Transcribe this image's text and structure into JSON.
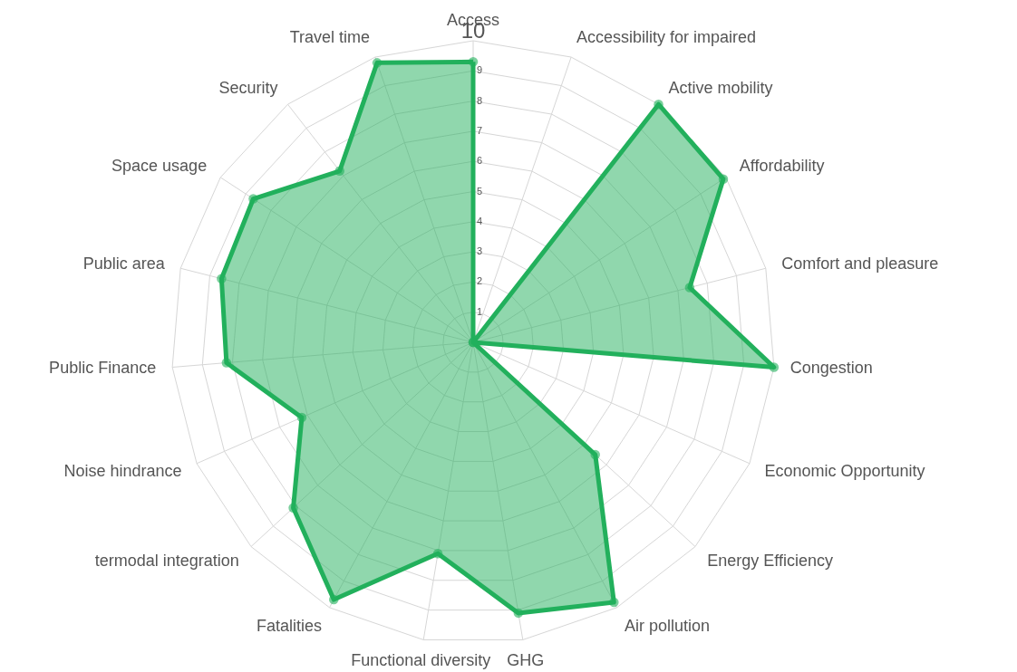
{
  "chart_data": {
    "type": "radar",
    "categories": [
      "Access",
      "Accessibility for impaired",
      "Active mobility",
      "Affordability",
      "Comfort and pleasure",
      "Congestion",
      "Economic Opportunity",
      "Energy Efficiency",
      "Air pollution",
      "GHG",
      "Functional diversity",
      "Fatalities",
      "termodal integration",
      "Noise hindrance",
      "Public Finance",
      "Public area",
      "Space usage",
      "Security",
      "Travel time"
    ],
    "series": [
      {
        "color": "#22b05c",
        "values": [
          9.3,
          0,
          10,
          9.9,
          7.4,
          10,
          0,
          5.5,
          9.8,
          9.1,
          7.1,
          9.7,
          8.1,
          6.2,
          8.2,
          8.6,
          8.7,
          7.2,
          9.8
        ]
      }
    ],
    "ylim": [
      0,
      10
    ],
    "yticks": [
      1,
      2,
      3,
      4,
      5,
      6,
      7,
      8,
      9,
      10
    ],
    "grid": true,
    "marker": "circle"
  }
}
